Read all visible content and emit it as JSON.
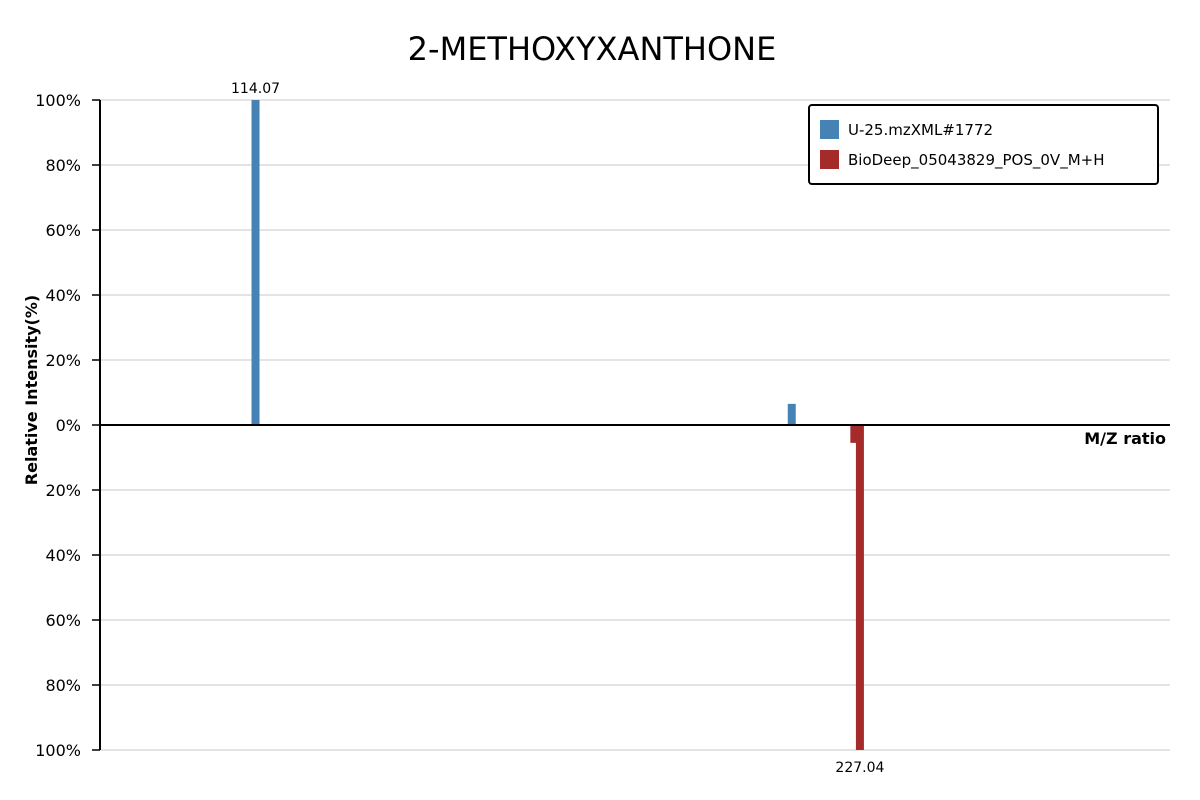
{
  "chart_data": {
    "type": "bar",
    "title": "2-METHOXYXANTHONE",
    "xlabel": "M/Z ratio",
    "ylabel": "Relative Intensity(%)",
    "xlim": [
      85,
      285
    ],
    "ylim_top": [
      0,
      100
    ],
    "ylim_bottom": [
      0,
      100
    ],
    "y_ticks_top": [
      "100%",
      "80%",
      "60%",
      "40%",
      "20%",
      "0%"
    ],
    "y_ticks_bottom": [
      "20%",
      "40%",
      "60%",
      "80%",
      "100%"
    ],
    "grid": true,
    "legend_position": "top-right",
    "series": [
      {
        "name": "U-25.mzXML#1772",
        "color": "#4682b4",
        "direction": "up",
        "peaks": [
          {
            "mz": 114.07,
            "intensity": 100,
            "label": "114.07"
          },
          {
            "mz": 214.3,
            "intensity": 6.5,
            "label": ""
          }
        ]
      },
      {
        "name": "BioDeep_05043829_POS_0V_M+H",
        "color": "#a52a2a",
        "direction": "down",
        "peaks": [
          {
            "mz": 227.04,
            "intensity": 100,
            "label": "227.04"
          },
          {
            "mz": 226.0,
            "intensity": 5.5,
            "label": ""
          }
        ]
      }
    ]
  }
}
